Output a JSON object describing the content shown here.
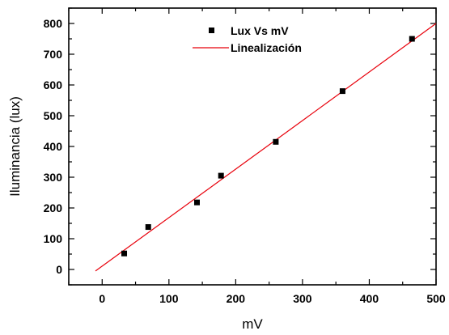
{
  "chart_data": {
    "type": "scatter",
    "xlabel": "mV",
    "ylabel": "Iluminancia (lux)",
    "xlim": [
      -50,
      500
    ],
    "ylim": [
      -50,
      850
    ],
    "x_ticks": [
      0,
      100,
      200,
      300,
      400,
      500
    ],
    "y_ticks": [
      0,
      100,
      200,
      300,
      400,
      500,
      600,
      700,
      800
    ],
    "grid": false,
    "legend_position": "top-center",
    "series": [
      {
        "name": "Lux Vs mV",
        "kind": "scatter",
        "marker": "square",
        "color": "#000000",
        "x": [
          33,
          69,
          142,
          178,
          260,
          360,
          464
        ],
        "y": [
          52,
          138,
          218,
          305,
          415,
          580,
          750
        ]
      },
      {
        "name": "Linealización",
        "kind": "line",
        "color": "#e8000b",
        "x": [
          -10,
          500
        ],
        "y": [
          -5,
          800
        ]
      }
    ]
  }
}
